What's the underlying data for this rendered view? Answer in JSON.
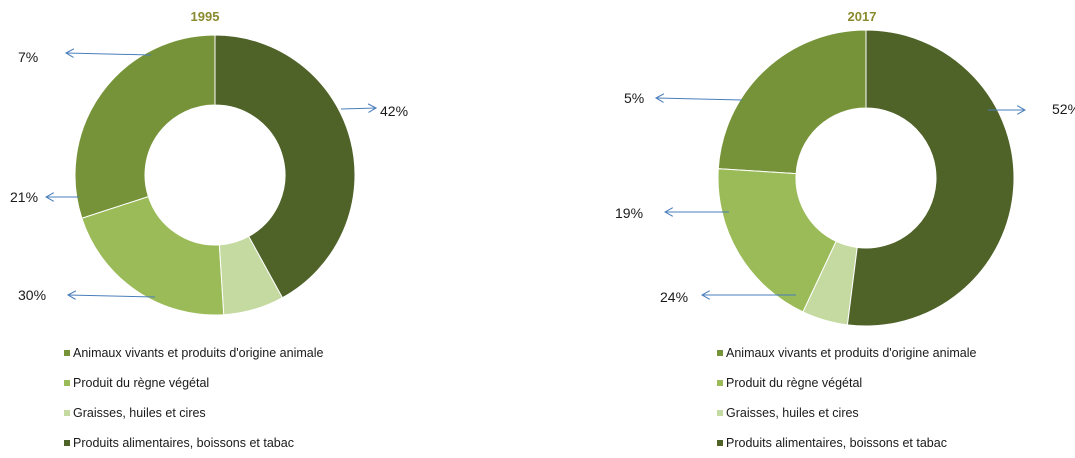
{
  "colors": {
    "title": "#8A8A2E",
    "arrow": "#4A7EBB",
    "categories": [
      "#779339",
      "#9BBB59",
      "#C5DAA0",
      "#4F6228"
    ]
  },
  "chart_data": [
    {
      "type": "pie",
      "title": "1995",
      "categories": [
        "Animaux vivants et produits d'origine animale",
        "Produit du règne végétal",
        "Graisses, huiles et cires",
        "Produits alimentaires, boissons et tabac"
      ],
      "values": [
        30,
        21,
        7,
        42
      ],
      "labels": [
        "30%",
        "21%",
        "7%",
        "42%"
      ]
    },
    {
      "type": "pie",
      "title": "2017",
      "categories": [
        "Animaux vivants et produits d'origine animale",
        "Produit du règne végétal",
        "Graisses, huiles et cires",
        "Produits alimentaires, boissons et tabac"
      ],
      "values": [
        24,
        19,
        5,
        52
      ],
      "labels": [
        "24%",
        "19%",
        "5%",
        "52%"
      ]
    }
  ]
}
